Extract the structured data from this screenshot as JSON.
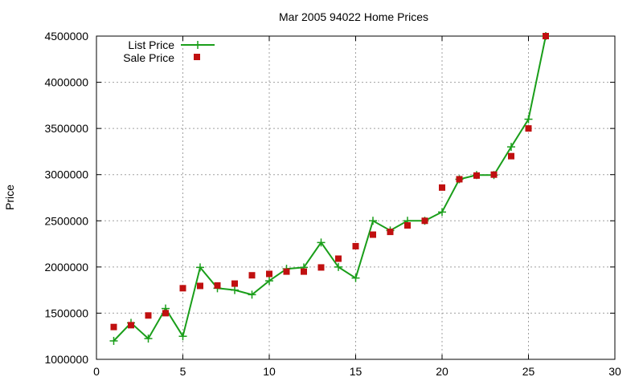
{
  "chart_data": {
    "type": "line",
    "title": "Mar 2005 94022 Home Prices",
    "xlabel": "",
    "ylabel": "Price",
    "xlim": [
      0,
      30
    ],
    "ylim": [
      1000000,
      4500000
    ],
    "x_ticks": [
      "0",
      "5",
      "10",
      "15",
      "20",
      "25",
      "30"
    ],
    "y_ticks": [
      "1000000",
      "1500000",
      "2000000",
      "2500000",
      "3000000",
      "3500000",
      "4000000",
      "4500000"
    ],
    "grid": true,
    "legend_position": "top-left",
    "series": [
      {
        "name": "List Price",
        "style": "line-with-plus-markers",
        "color": "#1a9e1a",
        "x": [
          1,
          2,
          3,
          4,
          5,
          6,
          7,
          8,
          9,
          10,
          11,
          12,
          13,
          14,
          15,
          16,
          17,
          18,
          19,
          20,
          21,
          22,
          23,
          24,
          25,
          26
        ],
        "y": [
          1200000,
          1395000,
          1225000,
          1550000,
          1250000,
          1995000,
          1770000,
          1750000,
          1700000,
          1850000,
          1980000,
          1995000,
          2265000,
          2000000,
          1880000,
          2500000,
          2395000,
          2500000,
          2500000,
          2595000,
          2950000,
          2995000,
          2995000,
          3300000,
          3600000,
          4500000
        ]
      },
      {
        "name": "Sale Price",
        "style": "square-markers",
        "color": "#c01010",
        "x": [
          1,
          2,
          3,
          4,
          5,
          6,
          7,
          8,
          9,
          10,
          11,
          12,
          13,
          14,
          15,
          16,
          17,
          18,
          19,
          20,
          21,
          22,
          23,
          24,
          25,
          26
        ],
        "y": [
          1350000,
          1370000,
          1475000,
          1500000,
          1770000,
          1795000,
          1800000,
          1820000,
          1910000,
          1925000,
          1950000,
          1950000,
          1995000,
          2090000,
          2225000,
          2350000,
          2380000,
          2450000,
          2500000,
          2860000,
          2950000,
          2990000,
          3000000,
          3200000,
          3500000,
          4500000
        ]
      }
    ]
  }
}
